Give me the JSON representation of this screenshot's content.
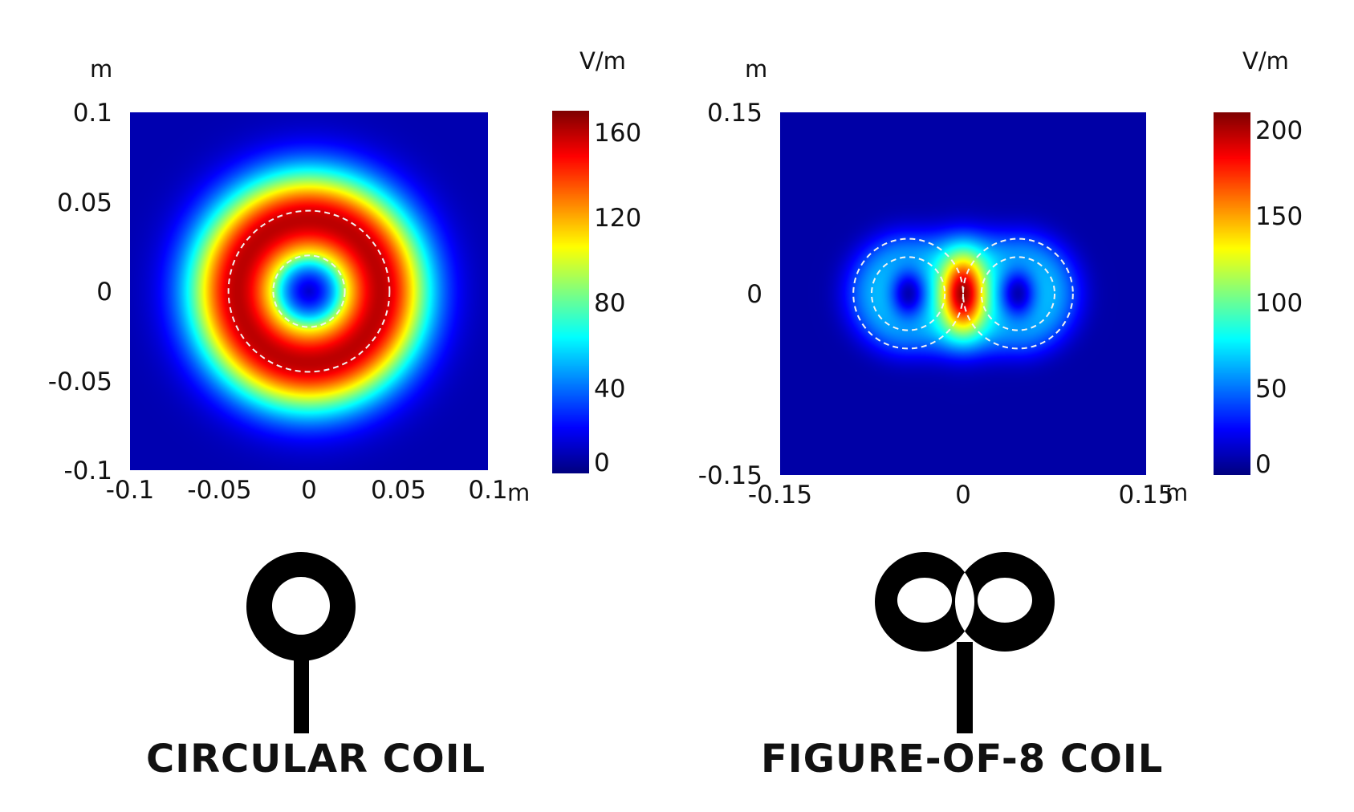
{
  "chart_data": [
    {
      "type": "heatmap",
      "xlabel": "m",
      "ylabel": "m",
      "colorbar_label": "V/m",
      "xlim": [
        -0.1,
        0.1
      ],
      "ylim": [
        -0.1,
        0.1
      ],
      "xticks": [
        "-0.1",
        "-0.05",
        "0",
        "0.05",
        "0.1"
      ],
      "xtick_values": [
        -0.1,
        -0.05,
        0,
        0.05,
        0.1
      ],
      "yticks": [
        "0.1",
        "0.05",
        "0",
        "-0.05",
        "-0.1"
      ],
      "ytick_values": [
        0.1,
        0.05,
        0,
        -0.05,
        -0.1
      ],
      "colorbar_range": [
        0,
        170
      ],
      "colorbar_ticks": [
        "160",
        "120",
        "80",
        "40",
        "0"
      ],
      "colorbar_tick_values": [
        160,
        120,
        80,
        40,
        0
      ],
      "field_model": "ring",
      "peak_value": 160,
      "peak_radius": 0.04,
      "background_value": 8,
      "coil_outline_circles": [
        {
          "cx": 0,
          "cy": 0,
          "r": 0.045
        },
        {
          "cx": 0,
          "cy": 0,
          "r": 0.02
        }
      ],
      "caption": "CIRCULAR COIL",
      "colormap": "jet",
      "outline_color": "#f2f2f2",
      "icon": "circular-coil-icon"
    },
    {
      "type": "heatmap",
      "xlabel": "m",
      "ylabel": "m",
      "colorbar_label": "V/m",
      "xlim": [
        -0.15,
        0.15
      ],
      "ylim": [
        -0.15,
        0.15
      ],
      "xticks": [
        "-0.15",
        "0",
        "0.15"
      ],
      "xtick_values": [
        -0.15,
        0,
        0.15
      ],
      "yticks": [
        "0.15",
        "0",
        "-0.15"
      ],
      "ytick_values": [
        0.15,
        0,
        -0.15
      ],
      "colorbar_range": [
        0,
        210
      ],
      "colorbar_ticks": [
        "200",
        "150",
        "100",
        "50",
        "0"
      ],
      "colorbar_tick_values": [
        200,
        150,
        100,
        50,
        0
      ],
      "field_model": "figure-of-8",
      "peak_value": 205,
      "background_value": 8,
      "coil_outline_circles": [
        {
          "cx": -0.045,
          "cy": 0,
          "r": 0.045
        },
        {
          "cx": -0.045,
          "cy": 0,
          "r": 0.03
        },
        {
          "cx": 0.045,
          "cy": 0,
          "r": 0.045
        },
        {
          "cx": 0.045,
          "cy": 0,
          "r": 0.03
        }
      ],
      "caption": "FIGURE-OF-8 COIL",
      "colormap": "jet",
      "outline_color": "#f2f2f2",
      "icon": "figure-of-8-coil-icon"
    }
  ]
}
